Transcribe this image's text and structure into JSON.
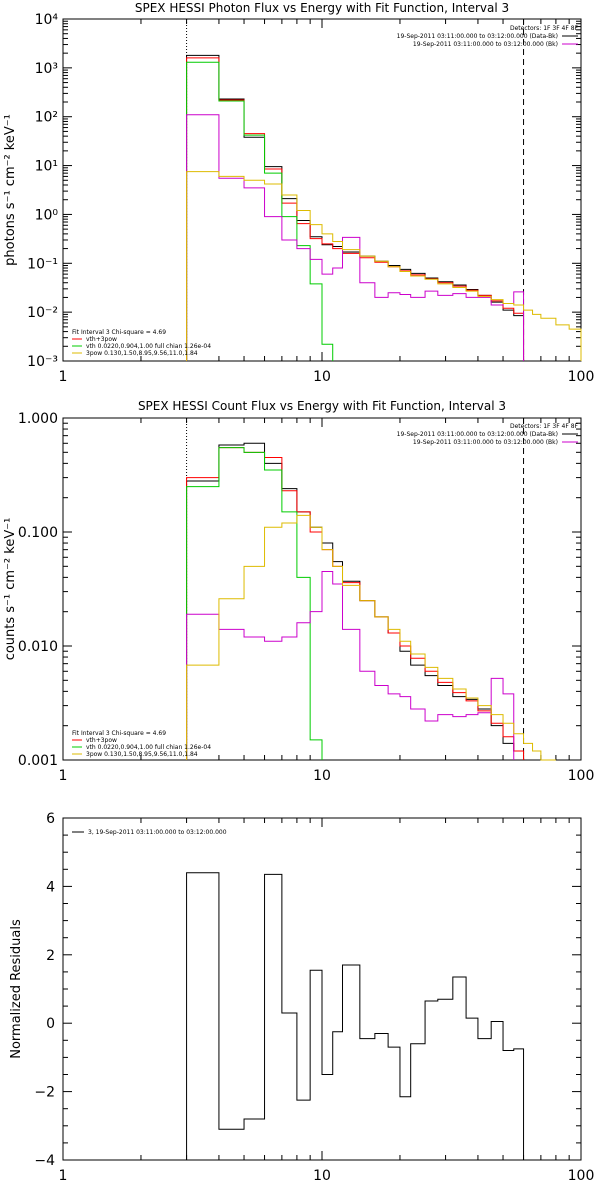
{
  "chart_data": [
    {
      "type": "line",
      "title": "SPEX HESSI Photon Flux vs Energy with Fit Function, Interval 3",
      "ylabel": "photons s⁻¹ cm⁻² keV⁻¹",
      "xscale": "log",
      "yscale": "log",
      "xlim": [
        1,
        100
      ],
      "ylim": [
        0.001,
        10000
      ],
      "x_ticks": [
        "1",
        "10",
        "100"
      ],
      "y_ticks": [
        "10⁻³",
        "10⁻²",
        "10⁻¹",
        "10⁰",
        "10¹",
        "10²",
        "10³",
        "10⁴"
      ],
      "vlines": [
        {
          "x": 3,
          "style": "dotted"
        },
        {
          "x": 60,
          "style": "dashed"
        }
      ],
      "legend_top_right": {
        "header": "Detectors: 1F 3F 4F 8F",
        "entries": [
          {
            "label": "19-Sep-2011 03:11:00.000 to 03:12:00.000 (Data-Bk)",
            "color": "#000000"
          },
          {
            "label": "19-Sep-2011 03:11:00.000 to 03:12:00.000 (Bk)",
            "color": "#cc00cc"
          }
        ]
      },
      "legend_bottom_left": {
        "header": "Fit Interval 3   Chi-square = 4.69",
        "entries": [
          {
            "label": "vth+3pow",
            "color": "#ff0000"
          },
          {
            "label": "vth 0.0220,0.904,1.00   full chian 1.26e-04",
            "color": "#00cc00"
          },
          {
            "label": "3pow 0.130,1.50,8.95,9.56,11.0,1.84",
            "color": "#ddbb00"
          }
        ]
      },
      "bin_edges": [
        3,
        4,
        5,
        6,
        7,
        8,
        9,
        10,
        11,
        12,
        14,
        16,
        18,
        20,
        22,
        25,
        28,
        32,
        36,
        40,
        45,
        50,
        55,
        60,
        65,
        70,
        80,
        90,
        100
      ],
      "series": [
        {
          "color": "#000000",
          "start_bin": 0,
          "values": [
            1800,
            230,
            38,
            9.5,
            2.1,
            0.75,
            0.35,
            0.24,
            0.22,
            0.17,
            0.14,
            0.11,
            0.09,
            0.075,
            0.062,
            0.05,
            0.042,
            0.036,
            0.029,
            0.022,
            0.016,
            0.011,
            0.0085
          ]
        },
        {
          "color": "#ff0000",
          "start_bin": 0,
          "values": [
            1600,
            220,
            45,
            8.5,
            1.7,
            0.65,
            0.32,
            0.25,
            0.2,
            0.16,
            0.13,
            0.105,
            0.085,
            0.07,
            0.058,
            0.048,
            0.04,
            0.034,
            0.028,
            0.022,
            0.017,
            0.012,
            0.0095
          ]
        },
        {
          "color": "#00cc00",
          "start_bin": 0,
          "values": [
            1300,
            210,
            42,
            7,
            0.9,
            0.23,
            0.038,
            0.0022
          ]
        },
        {
          "color": "#cc00cc",
          "start_bin": 0,
          "values": [
            110,
            5.5,
            3.5,
            0.9,
            0.3,
            0.2,
            0.12,
            0.06,
            0.08,
            0.34,
            0.04,
            0.02,
            0.025,
            0.023,
            0.02,
            0.027,
            0.022,
            0.024,
            0.02,
            0.02,
            0.014,
            0.015,
            0.026
          ]
        },
        {
          "color": "#ddbb00",
          "start_bin": 0,
          "values": [
            7.5,
            6,
            5,
            4.2,
            2.5,
            1.2,
            0.62,
            0.4,
            0.28,
            0.19,
            0.14,
            0.11,
            0.085,
            0.068,
            0.055,
            0.047,
            0.038,
            0.032,
            0.027,
            0.021,
            0.018,
            0.015,
            0.014,
            0.011,
            0.009,
            0.0075,
            0.0055,
            0.0045
          ]
        }
      ]
    },
    {
      "type": "line",
      "title": "SPEX HESSI Count Flux vs Energy with Fit Function, Interval 3",
      "ylabel": "counts s⁻¹ cm⁻² keV⁻¹",
      "xscale": "log",
      "yscale": "log",
      "xlim": [
        1,
        100
      ],
      "ylim": [
        0.001,
        1
      ],
      "x_ticks": [
        "1",
        "10",
        "100"
      ],
      "y_ticks": [
        "0.001",
        "0.010",
        "0.100",
        "1.000"
      ],
      "vlines": [
        {
          "x": 3,
          "style": "dotted"
        },
        {
          "x": 60,
          "style": "dashed"
        }
      ],
      "legend_top_right": {
        "header": "Detectors: 1F 3F 4F 8F",
        "entries": [
          {
            "label": "19-Sep-2011 03:11:00.000 to 03:12:00.000 (Data-Bk)",
            "color": "#000000"
          },
          {
            "label": "19-Sep-2011 03:11:00.000 to 03:12:00.000 (Bk)",
            "color": "#cc00cc"
          }
        ]
      },
      "legend_bottom_left": {
        "header": "Fit Interval 3   Chi-square = 4.69",
        "entries": [
          {
            "label": "vth+3pow",
            "color": "#ff0000"
          },
          {
            "label": "vth 0.0220,0.904,1.00   full chian 1.26e-04",
            "color": "#00cc00"
          },
          {
            "label": "3pow 0.130,1.50,8.95,9.56,11.0,1.84",
            "color": "#ddbb00"
          }
        ]
      },
      "bin_edges": [
        3,
        4,
        5,
        6,
        7,
        8,
        9,
        10,
        11,
        12,
        14,
        16,
        18,
        20,
        22,
        25,
        28,
        32,
        36,
        40,
        45,
        50,
        55,
        60,
        65,
        70,
        80,
        90,
        100
      ],
      "series": [
        {
          "color": "#000000",
          "start_bin": 0,
          "values": [
            0.28,
            0.58,
            0.6,
            0.4,
            0.24,
            0.15,
            0.11,
            0.08,
            0.055,
            0.037,
            0.025,
            0.018,
            0.013,
            0.009,
            0.0068,
            0.0055,
            0.0045,
            0.0036,
            0.0034,
            0.0028,
            0.002,
            0.0014,
            0.0012
          ]
        },
        {
          "color": "#ff0000",
          "start_bin": 0,
          "values": [
            0.3,
            0.55,
            0.5,
            0.45,
            0.23,
            0.15,
            0.1,
            0.07,
            0.05,
            0.036,
            0.025,
            0.018,
            0.013,
            0.01,
            0.0078,
            0.006,
            0.0048,
            0.0039,
            0.0033,
            0.0027,
            0.0021,
            0.0016,
            0.0012
          ]
        },
        {
          "color": "#00cc00",
          "start_bin": 0,
          "values": [
            0.25,
            0.55,
            0.5,
            0.35,
            0.15,
            0.04,
            0.0015
          ]
        },
        {
          "color": "#cc00cc",
          "start_bin": 0,
          "values": [
            0.019,
            0.014,
            0.012,
            0.011,
            0.012,
            0.016,
            0.02,
            0.045,
            0.035,
            0.014,
            0.006,
            0.0045,
            0.0038,
            0.0036,
            0.0028,
            0.0022,
            0.0025,
            0.0024,
            0.0025,
            0.0026,
            0.0052,
            0.0038
          ]
        },
        {
          "color": "#ddbb00",
          "start_bin": 0,
          "values": [
            0.0068,
            0.026,
            0.05,
            0.11,
            0.12,
            0.14,
            0.11,
            0.07,
            0.05,
            0.034,
            0.025,
            0.018,
            0.014,
            0.011,
            0.0085,
            0.0065,
            0.0052,
            0.0042,
            0.0035,
            0.003,
            0.0025,
            0.0021,
            0.0017,
            0.0014,
            0.0012,
            0.001
          ]
        }
      ]
    },
    {
      "type": "line",
      "title": "",
      "ylabel": "Normalized Residuals",
      "xscale": "log",
      "yscale": "linear",
      "xlim": [
        1,
        100
      ],
      "ylim": [
        -4,
        6
      ],
      "x_ticks": [
        "1",
        "10",
        "100"
      ],
      "y_ticks": [
        "−4",
        "−2",
        "0",
        "2",
        "4",
        "6"
      ],
      "legend_top_left": {
        "entries": [
          {
            "label": "3, 19-Sep-2011 03:11:00.000 to 03:12:00.000",
            "color": "#000000"
          }
        ]
      },
      "bin_edges": [
        3,
        4,
        5,
        6,
        7,
        8,
        9,
        10,
        11,
        12,
        14,
        16,
        18,
        20,
        22,
        25,
        28,
        32,
        36,
        40,
        45,
        50,
        55,
        60
      ],
      "series": [
        {
          "color": "#000000",
          "start_bin": 0,
          "values": [
            4.4,
            -3.1,
            -2.8,
            4.35,
            0.3,
            -2.25,
            1.55,
            -1.5,
            -0.25,
            1.7,
            -0.45,
            -0.3,
            -0.7,
            -2.15,
            -0.6,
            0.65,
            0.7,
            1.35,
            0.15,
            -0.45,
            0.05,
            -0.8,
            -0.75
          ]
        }
      ]
    }
  ]
}
